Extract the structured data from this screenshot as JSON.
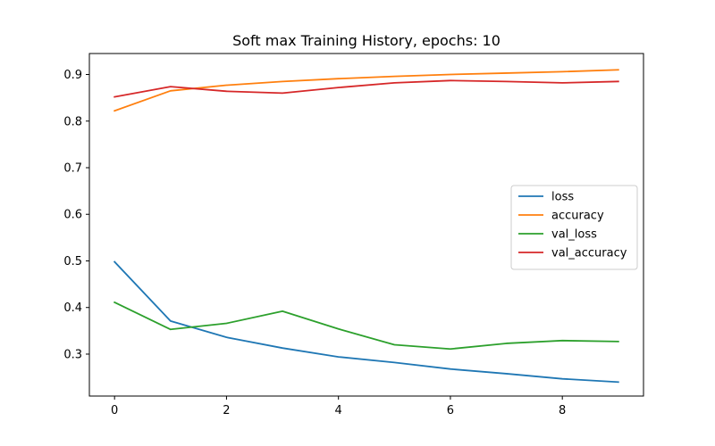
{
  "chart_data": {
    "type": "line",
    "title": "Soft max Training History, epochs: 10",
    "xlabel": "",
    "ylabel": "",
    "x": [
      0,
      1,
      2,
      3,
      4,
      5,
      6,
      7,
      8,
      9
    ],
    "xlim": [
      -0.45,
      9.45
    ],
    "ylim": [
      0.21,
      0.945
    ],
    "xticks": [
      0,
      2,
      4,
      6,
      8
    ],
    "yticks": [
      0.3,
      0.4,
      0.5,
      0.6,
      0.7,
      0.8,
      0.9
    ],
    "xtick_labels": [
      "0",
      "2",
      "4",
      "6",
      "8"
    ],
    "ytick_labels": [
      "0.3",
      "0.4",
      "0.5",
      "0.6",
      "0.7",
      "0.8",
      "0.9"
    ],
    "grid": false,
    "legend_position": "center-right",
    "series": [
      {
        "name": "loss",
        "color": "#1f77b4",
        "values": [
          0.498,
          0.371,
          0.336,
          0.313,
          0.294,
          0.282,
          0.268,
          0.258,
          0.247,
          0.24
        ]
      },
      {
        "name": "accuracy",
        "color": "#ff7f0e",
        "values": [
          0.822,
          0.865,
          0.877,
          0.885,
          0.891,
          0.896,
          0.9,
          0.903,
          0.906,
          0.91
        ]
      },
      {
        "name": "val_loss",
        "color": "#2ca02c",
        "values": [
          0.411,
          0.353,
          0.366,
          0.392,
          0.354,
          0.32,
          0.311,
          0.323,
          0.329,
          0.327
        ]
      },
      {
        "name": "val_accuracy",
        "color": "#d62728",
        "values": [
          0.852,
          0.874,
          0.864,
          0.86,
          0.872,
          0.882,
          0.887,
          0.885,
          0.882,
          0.885
        ]
      }
    ]
  }
}
